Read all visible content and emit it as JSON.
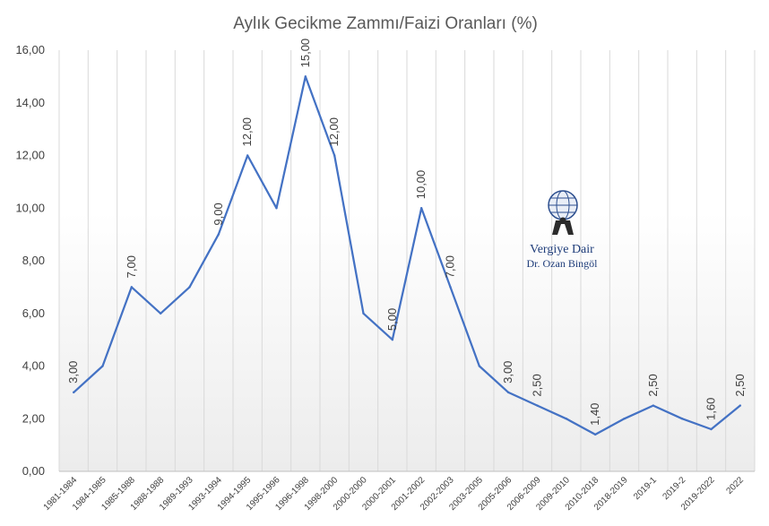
{
  "chart_data": {
    "type": "line",
    "title": "Aylık Gecikme Zammı/Faizi Oranları (%)",
    "xlabel": "",
    "ylabel": "",
    "ylim": [
      0,
      16
    ],
    "yticks": [
      "0,00",
      "2,00",
      "4,00",
      "6,00",
      "8,00",
      "10,00",
      "12,00",
      "14,00",
      "16,00"
    ],
    "grid": "vertical",
    "line_color": "#4472c4",
    "categories": [
      "1981-1984",
      "1984-1985",
      "1985-1988",
      "1988-1988",
      "1989-1993",
      "1993-1994",
      "1994-1995",
      "1995-1996",
      "1996-1998",
      "1998-2000",
      "2000-2000",
      "2000-2001",
      "2001-2002",
      "2002-2003",
      "2003-2005",
      "2005-2006",
      "2006-2009",
      "2009-2010",
      "2010-2018",
      "2018-2019",
      "2019-1",
      "2019-2",
      "2019-2022",
      "2022"
    ],
    "values": [
      3,
      4,
      7,
      6,
      7,
      9,
      12,
      10,
      15,
      12,
      6,
      5,
      10,
      7,
      4,
      3,
      2.5,
      2,
      1.4,
      2,
      2.5,
      2,
      1.6,
      2.5
    ],
    "data_labels": [
      {
        "index": 0,
        "text": "3,00"
      },
      {
        "index": 2,
        "text": "7,00"
      },
      {
        "index": 5,
        "text": "9,00"
      },
      {
        "index": 6,
        "text": "12,00"
      },
      {
        "index": 8,
        "text": "15,00"
      },
      {
        "index": 9,
        "text": "12,00"
      },
      {
        "index": 11,
        "text": "5,00"
      },
      {
        "index": 12,
        "text": "10,00"
      },
      {
        "index": 13,
        "text": "7,00"
      },
      {
        "index": 15,
        "text": "3,00"
      },
      {
        "index": 16,
        "text": "2,50"
      },
      {
        "index": 18,
        "text": "1,40"
      },
      {
        "index": 20,
        "text": "2,50"
      },
      {
        "index": 22,
        "text": "1,60"
      },
      {
        "index": 23,
        "text": "2,50"
      }
    ]
  },
  "watermark": {
    "line1": "Vergiye Dair",
    "line2": "Dr. Ozan Bingöl",
    "icon": "globe-atlas-icon"
  }
}
